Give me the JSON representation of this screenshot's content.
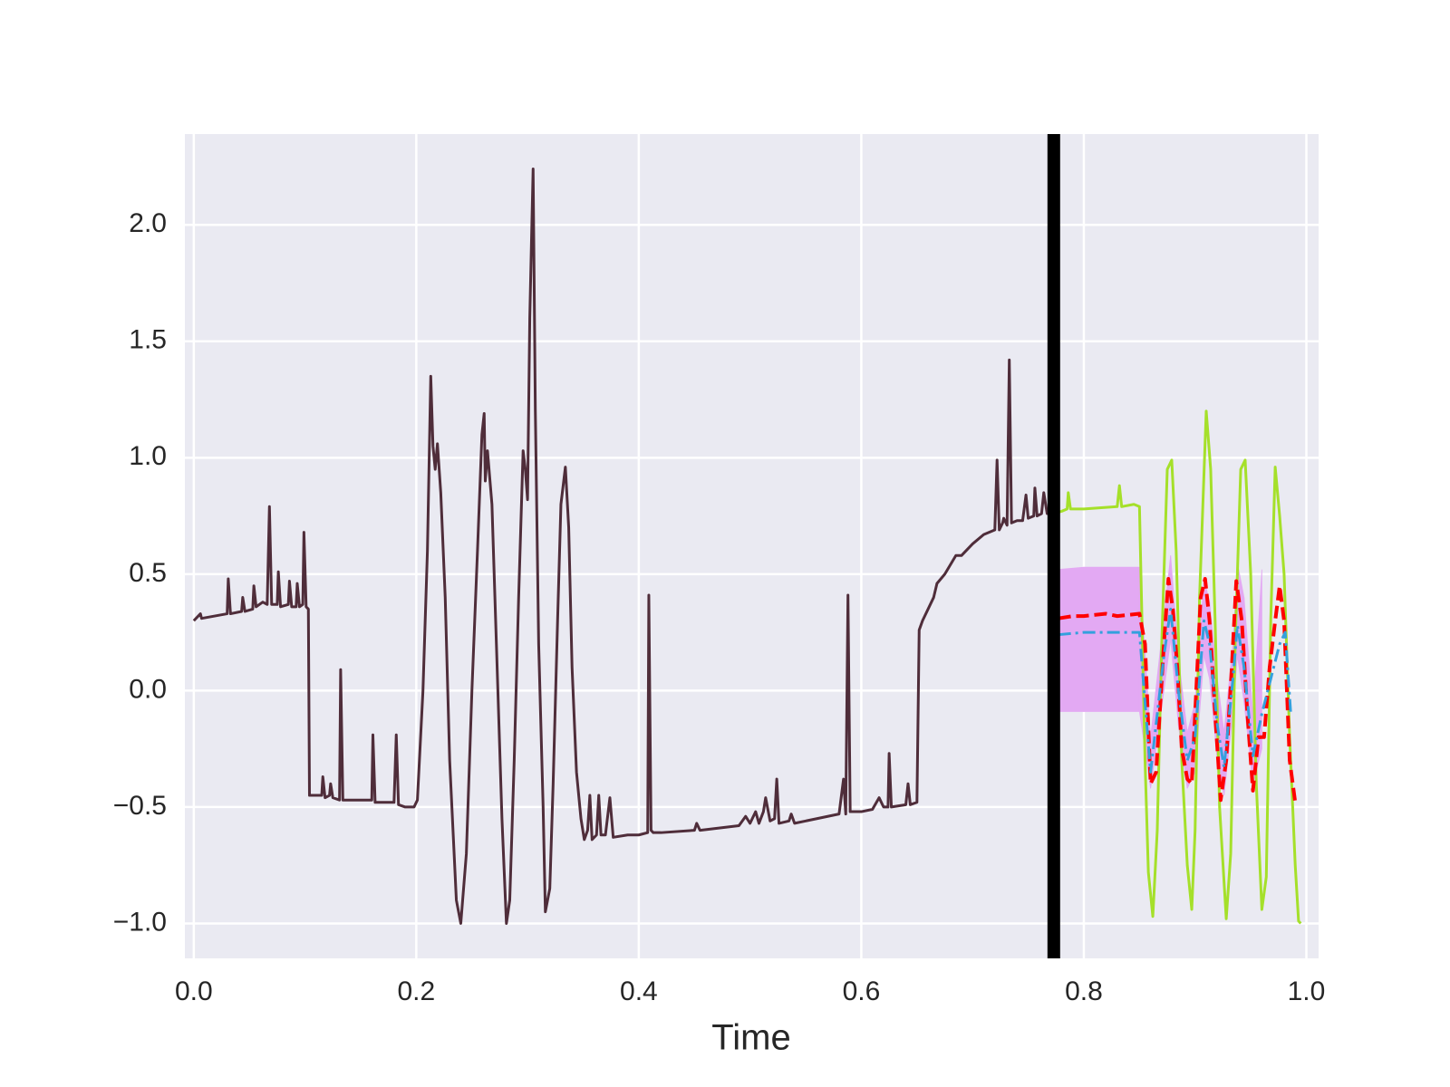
{
  "chart_data": {
    "type": "line",
    "xlabel": "Time",
    "xlim": [
      -0.008,
      1.011
    ],
    "ylim": [
      -1.15,
      2.39
    ],
    "xticks": [
      {
        "value": 0,
        "label": "0.0"
      },
      {
        "value": 0.2,
        "label": "0.2"
      },
      {
        "value": 0.4,
        "label": "0.4"
      },
      {
        "value": 0.6,
        "label": "0.6"
      },
      {
        "value": 0.8,
        "label": "0.8"
      },
      {
        "value": 1,
        "label": "1.0"
      }
    ],
    "yticks": [
      {
        "value": -1,
        "label": "−1.0"
      },
      {
        "value": -0.5,
        "label": "−0.5"
      },
      {
        "value": 0,
        "label": "0.0"
      },
      0.5,
      {
        "value": 1,
        "label": "1.0"
      },
      1.5,
      {
        "value": 2,
        "label": "2.0"
      }
    ],
    "grid": true,
    "background": "#eaeaf2",
    "vlines": [
      {
        "x": 0.773,
        "color": "#000000"
      }
    ],
    "band": {
      "color": "#e3a9f3",
      "x": [
        0.777,
        0.8,
        0.85,
        0.86,
        0.872,
        0.878,
        0.885,
        0.893,
        0.9,
        0.908,
        0.913,
        0.92,
        0.926,
        0.934,
        0.938,
        0.944,
        0.952,
        0.96
      ],
      "lower": [
        -0.09,
        -0.09,
        -0.09,
        -0.42,
        0.0,
        0.22,
        -0.15,
        -0.42,
        -0.35,
        0.15,
        0.05,
        -0.3,
        -0.45,
        -0.1,
        0.15,
        -0.05,
        -0.4,
        -0.25
      ],
      "upper": [
        0.52,
        0.53,
        0.53,
        -0.2,
        0.32,
        0.58,
        0.15,
        -0.18,
        -0.05,
        0.48,
        0.38,
        0.05,
        -0.18,
        0.2,
        0.55,
        0.4,
        -0.1,
        0.52
      ]
    },
    "series": [
      {
        "color": "#4f2d3a",
        "linestyle": "solid",
        "x": [
          0.0,
          0.006,
          0.007,
          0.03,
          0.031,
          0.033,
          0.043,
          0.044,
          0.046,
          0.053,
          0.054,
          0.056,
          0.062,
          0.066,
          0.068,
          0.07,
          0.075,
          0.076,
          0.078,
          0.085,
          0.086,
          0.088,
          0.092,
          0.093,
          0.095,
          0.098,
          0.099,
          0.101,
          0.103,
          0.104,
          0.115,
          0.116,
          0.118,
          0.122,
          0.123,
          0.125,
          0.131,
          0.132,
          0.134,
          0.16,
          0.161,
          0.163,
          0.17,
          0.18,
          0.182,
          0.184,
          0.19,
          0.198,
          0.201,
          0.206,
          0.21,
          0.213,
          0.215,
          0.217,
          0.219,
          0.222,
          0.226,
          0.23,
          0.236,
          0.24,
          0.245,
          0.25,
          0.255,
          0.259,
          0.261,
          0.262,
          0.264,
          0.268,
          0.272,
          0.277,
          0.281,
          0.284,
          0.288,
          0.292,
          0.296,
          0.298,
          0.3,
          0.302,
          0.305,
          0.307,
          0.31,
          0.314,
          0.316,
          0.32,
          0.323,
          0.327,
          0.33,
          0.334,
          0.337,
          0.34,
          0.344,
          0.348,
          0.351,
          0.354,
          0.356,
          0.358,
          0.362,
          0.364,
          0.366,
          0.37,
          0.374,
          0.377,
          0.39,
          0.4,
          0.408,
          0.409,
          0.411,
          0.413,
          0.42,
          0.45,
          0.452,
          0.455,
          0.49,
          0.496,
          0.5,
          0.505,
          0.508,
          0.512,
          0.514,
          0.518,
          0.522,
          0.524,
          0.526,
          0.535,
          0.537,
          0.54,
          0.56,
          0.58,
          0.584,
          0.586,
          0.588,
          0.59,
          0.6,
          0.61,
          0.616,
          0.62,
          0.624,
          0.625,
          0.627,
          0.64,
          0.642,
          0.644,
          0.65,
          0.652,
          0.655,
          0.665,
          0.668,
          0.675,
          0.685,
          0.69,
          0.7,
          0.71,
          0.72,
          0.722,
          0.724,
          0.727,
          0.728,
          0.731,
          0.733,
          0.735,
          0.74,
          0.745,
          0.748,
          0.75,
          0.755,
          0.756,
          0.758,
          0.762,
          0.764,
          0.767,
          0.772
        ],
        "values": [
          0.3,
          0.33,
          0.31,
          0.33,
          0.48,
          0.33,
          0.34,
          0.4,
          0.34,
          0.35,
          0.45,
          0.36,
          0.38,
          0.37,
          0.79,
          0.37,
          0.37,
          0.51,
          0.36,
          0.37,
          0.47,
          0.36,
          0.36,
          0.46,
          0.36,
          0.37,
          0.68,
          0.36,
          0.35,
          -0.45,
          -0.45,
          -0.37,
          -0.46,
          -0.45,
          -0.4,
          -0.46,
          -0.47,
          0.09,
          -0.47,
          -0.47,
          -0.19,
          -0.48,
          -0.48,
          -0.48,
          -0.19,
          -0.49,
          -0.5,
          -0.5,
          -0.47,
          0.0,
          0.6,
          1.35,
          1.05,
          0.95,
          1.06,
          0.85,
          0.4,
          -0.3,
          -0.9,
          -1.0,
          -0.7,
          0.0,
          0.6,
          1.1,
          1.19,
          0.9,
          1.03,
          0.8,
          0.2,
          -0.55,
          -1.0,
          -0.9,
          -0.3,
          0.4,
          1.03,
          0.95,
          0.82,
          1.6,
          2.24,
          1.2,
          0.2,
          -0.5,
          -0.95,
          -0.85,
          -0.4,
          0.3,
          0.8,
          0.96,
          0.7,
          0.1,
          -0.35,
          -0.55,
          -0.64,
          -0.6,
          -0.45,
          -0.64,
          -0.62,
          -0.45,
          -0.62,
          -0.62,
          -0.46,
          -0.63,
          -0.62,
          -0.62,
          -0.61,
          0.41,
          -0.6,
          -0.61,
          -0.61,
          -0.6,
          -0.57,
          -0.6,
          -0.58,
          -0.54,
          -0.57,
          -0.52,
          -0.57,
          -0.52,
          -0.46,
          -0.56,
          -0.55,
          -0.38,
          -0.57,
          -0.56,
          -0.53,
          -0.57,
          -0.55,
          -0.53,
          -0.38,
          -0.53,
          0.41,
          -0.52,
          -0.52,
          -0.51,
          -0.46,
          -0.5,
          -0.5,
          -0.27,
          -0.5,
          -0.49,
          -0.4,
          -0.49,
          -0.48,
          0.26,
          0.3,
          0.4,
          0.46,
          0.5,
          0.58,
          0.58,
          0.63,
          0.67,
          0.69,
          0.99,
          0.69,
          0.72,
          0.74,
          0.71,
          1.42,
          0.72,
          0.73,
          0.73,
          0.84,
          0.74,
          0.75,
          0.87,
          0.75,
          0.76,
          0.85,
          0.76,
          0.76
        ]
      },
      {
        "color": "#a5e02a",
        "linestyle": "solid",
        "x": [
          0.772,
          0.78,
          0.785,
          0.786,
          0.788,
          0.8,
          0.83,
          0.832,
          0.834,
          0.845,
          0.85,
          0.855,
          0.858,
          0.862,
          0.866,
          0.87,
          0.875,
          0.879,
          0.883,
          0.888,
          0.893,
          0.897,
          0.9,
          0.904,
          0.91,
          0.914,
          0.918,
          0.922,
          0.928,
          0.932,
          0.936,
          0.941,
          0.945,
          0.95,
          0.955,
          0.96,
          0.964,
          0.968,
          0.972,
          0.976,
          0.98,
          0.985,
          0.99,
          0.993,
          0.995
        ],
        "values": [
          0.76,
          0.77,
          0.78,
          0.85,
          0.78,
          0.78,
          0.79,
          0.88,
          0.79,
          0.8,
          0.79,
          -0.3,
          -0.78,
          -0.97,
          -0.6,
          0.2,
          0.95,
          0.99,
          0.6,
          -0.3,
          -0.75,
          -0.94,
          -0.6,
          0.4,
          1.2,
          0.95,
          0.3,
          -0.5,
          -0.98,
          -0.7,
          0.2,
          0.95,
          0.99,
          0.5,
          -0.4,
          -0.94,
          -0.8,
          0.3,
          0.96,
          0.75,
          0.5,
          -0.2,
          -0.75,
          -0.99,
          -1.0
        ]
      },
      {
        "color": "#ff0000",
        "linestyle": "dashed",
        "x": [
          0.777,
          0.79,
          0.8,
          0.82,
          0.83,
          0.85,
          0.855,
          0.86,
          0.865,
          0.872,
          0.876,
          0.88,
          0.884,
          0.888,
          0.893,
          0.897,
          0.9,
          0.905,
          0.909,
          0.913,
          0.918,
          0.923,
          0.928,
          0.933,
          0.937,
          0.942,
          0.947,
          0.952,
          0.957,
          0.962,
          0.967,
          0.972,
          0.976,
          0.98,
          0.985,
          0.99
        ],
        "values": [
          0.31,
          0.32,
          0.32,
          0.33,
          0.32,
          0.33,
          0.2,
          -0.4,
          -0.35,
          0.2,
          0.48,
          0.35,
          0.1,
          -0.25,
          -0.38,
          -0.4,
          -0.1,
          0.4,
          0.48,
          0.3,
          -0.1,
          -0.47,
          -0.3,
          0.1,
          0.47,
          0.3,
          -0.1,
          -0.43,
          -0.2,
          -0.2,
          0.1,
          0.3,
          0.45,
          0.3,
          -0.3,
          -0.48
        ]
      },
      {
        "color": "#33a0dd",
        "linestyle": "dashdot",
        "x": [
          0.777,
          0.8,
          0.82,
          0.85,
          0.86,
          0.872,
          0.878,
          0.885,
          0.893,
          0.9,
          0.908,
          0.913,
          0.92,
          0.926,
          0.934,
          0.938,
          0.944,
          0.952,
          0.96,
          0.968,
          0.976,
          0.981,
          0.986
        ],
        "values": [
          0.24,
          0.25,
          0.25,
          0.25,
          -0.35,
          0.15,
          0.35,
          0.0,
          -0.3,
          -0.2,
          0.3,
          0.2,
          -0.15,
          -0.33,
          0.05,
          0.28,
          0.1,
          -0.28,
          -0.1,
          0.05,
          0.2,
          0.25,
          -0.1
        ]
      }
    ]
  }
}
